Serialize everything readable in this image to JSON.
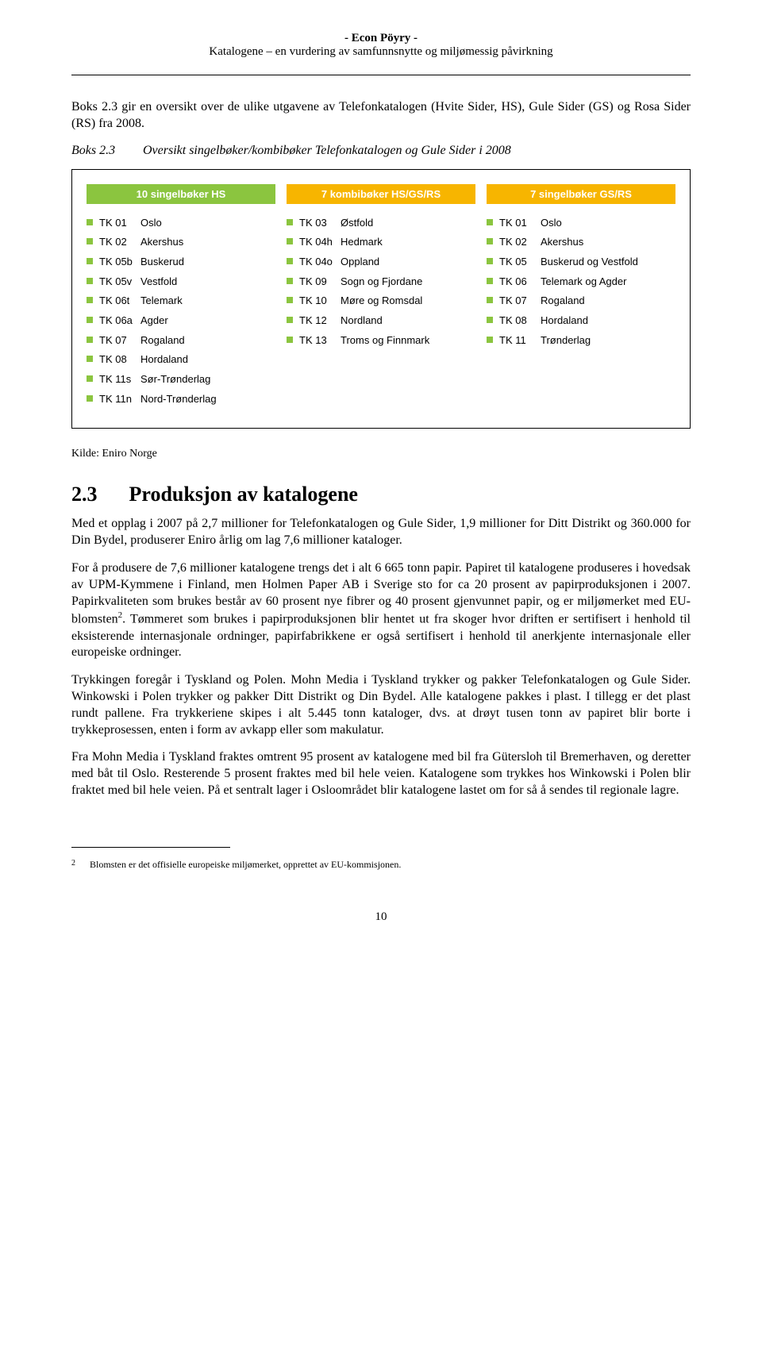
{
  "header": {
    "company": "- Econ Pöyry -",
    "subtitle": "Katalogene – en vurdering av samfunnsnytte og miljømessig påvirkning"
  },
  "intro": "Boks 2.3 gir en oversikt over de ulike utgavene av Telefonkatalogen (Hvite Sider, HS), Gule Sider (GS) og Rosa Sider (RS) fra 2008.",
  "boks": {
    "label": "Boks 2.3",
    "title": "Oversikt singelbøker/kombibøker Telefonkatalogen og Gule Sider i 2008"
  },
  "columns": [
    {
      "header": "10 singelbøker HS",
      "header_bg": "#8bc53f",
      "bullet_color": "#8bc53f",
      "items": [
        {
          "code": "TK 01",
          "name": "Oslo"
        },
        {
          "code": "TK 02",
          "name": "Akershus"
        },
        {
          "code": "TK 05b",
          "name": "Buskerud"
        },
        {
          "code": "TK 05v",
          "name": "Vestfold"
        },
        {
          "code": "TK 06t",
          "name": "Telemark"
        },
        {
          "code": "TK 06a",
          "name": "Agder"
        },
        {
          "code": "TK 07",
          "name": "Rogaland"
        },
        {
          "code": "TK 08",
          "name": "Hordaland"
        },
        {
          "code": "TK 11s",
          "name": "Sør-Trønderlag"
        },
        {
          "code": "TK 11n",
          "name": "Nord-Trønderlag"
        }
      ]
    },
    {
      "header": "7 kombibøker HS/GS/RS",
      "header_bg": "#f7b500",
      "bullet_color": "#8bc53f",
      "items": [
        {
          "code": "TK 03",
          "name": "Østfold"
        },
        {
          "code": "TK 04h",
          "name": "Hedmark"
        },
        {
          "code": "TK 04o",
          "name": "Oppland"
        },
        {
          "code": "TK 09",
          "name": "Sogn og Fjordane"
        },
        {
          "code": "TK 10",
          "name": "Møre og Romsdal"
        },
        {
          "code": "TK 12",
          "name": "Nordland"
        },
        {
          "code": "TK 13",
          "name": "Troms og Finnmark"
        }
      ]
    },
    {
      "header": "7 singelbøker GS/RS",
      "header_bg": "#f7b500",
      "bullet_color": "#8bc53f",
      "items": [
        {
          "code": "TK 01",
          "name": "Oslo"
        },
        {
          "code": "TK 02",
          "name": "Akershus"
        },
        {
          "code": "TK 05",
          "name": "Buskerud og Vestfold"
        },
        {
          "code": "TK 06",
          "name": "Telemark og Agder"
        },
        {
          "code": "TK 07",
          "name": "Rogaland"
        },
        {
          "code": "TK 08",
          "name": "Hordaland"
        },
        {
          "code": "TK 11",
          "name": "Trønderlag"
        }
      ]
    }
  ],
  "kilde": "Kilde:  Eniro Norge",
  "section": {
    "num": "2.3",
    "title": "Produksjon av katalogene"
  },
  "p1": "Med et opplag i 2007 på 2,7 millioner for Telefonkatalogen og Gule Sider, 1,9 millioner for Ditt Distrikt og 360.000 for Din Bydel, produserer Eniro årlig om lag 7,6 millioner kataloger.",
  "p2a": "For å produsere de 7,6 millioner katalogene trengs det i alt 6 665 tonn papir. Papiret til katalogene produseres i hovedsak av UPM-Kymmene i Finland, men Holmen Paper AB i Sverige sto for ca 20 prosent av papirproduksjonen i 2007. Papirkvaliteten som brukes består av 60 prosent nye fibrer og 40 prosent gjenvunnet papir, og er miljømerket med EU-blomsten",
  "p2b": ". Tømmeret som brukes i papirproduksjonen blir hentet ut fra skoger hvor driften er sertifisert i henhold til eksisterende internasjonale ordninger, papirfabrikkene er også sertifisert i henhold til anerkjente internasjonale eller europeiske ordninger.",
  "p3": "Trykkingen foregår i Tyskland og Polen. Mohn Media i Tyskland trykker og pakker Telefonkatalogen og Gule Sider. Winkowski i Polen trykker og pakker Ditt Distrikt og Din Bydel. Alle katalogene pakkes i plast. I tillegg er det plast rundt pallene. Fra trykkeriene skipes i alt 5.445 tonn kataloger, dvs. at drøyt tusen tonn av papiret blir borte i trykkeprosessen, enten i form av avkapp eller som makulatur.",
  "p4": "Fra Mohn Media i Tyskland fraktes omtrent 95 prosent av katalogene med bil fra Gütersloh til Bremerhaven, og deretter med båt til Oslo. Resterende 5 prosent fraktes med bil hele veien. Katalogene som trykkes hos Winkowski i Polen blir fraktet med bil hele veien. På et sentralt lager i Osloområdet blir katalogene lastet om for så å sendes til regionale lagre.",
  "footnote": {
    "num": "2",
    "text": "Blomsten er det offisielle europeiske miljømerket, opprettet av EU-kommisjonen."
  },
  "page": "10"
}
